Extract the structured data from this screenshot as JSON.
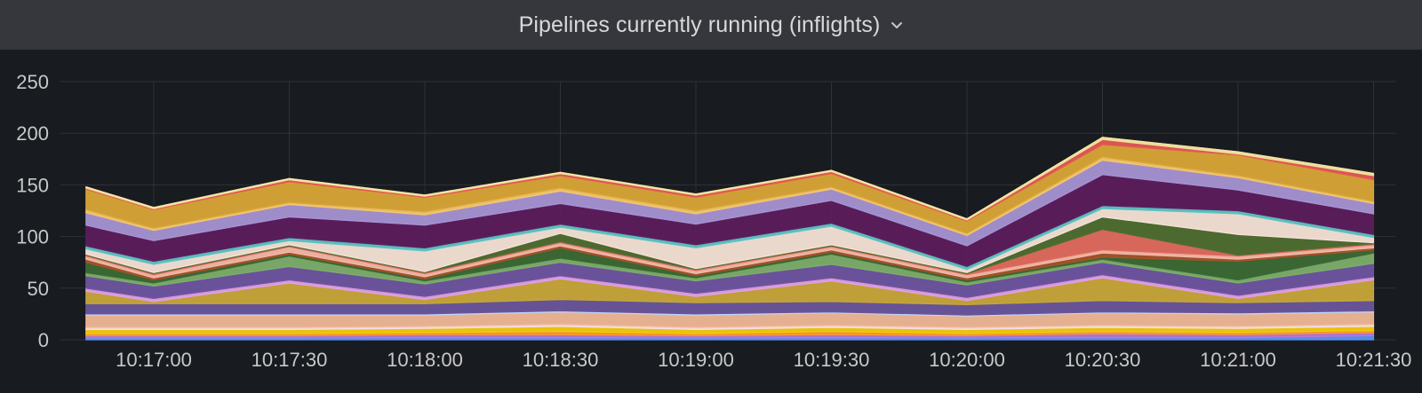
{
  "panel": {
    "title": "Pipelines currently running (inflights)",
    "menu_icon": "chevron-down-icon"
  },
  "chart_data": {
    "type": "area",
    "stacked": true,
    "title": "Pipelines currently running (inflights)",
    "xlabel": "",
    "ylabel": "",
    "x": [
      "10:16:45",
      "10:17:00",
      "10:17:30",
      "10:18:00",
      "10:18:30",
      "10:19:00",
      "10:19:30",
      "10:20:00",
      "10:20:30",
      "10:21:00",
      "10:21:30"
    ],
    "xticks": [
      "10:17:00",
      "10:17:30",
      "10:18:00",
      "10:18:30",
      "10:19:00",
      "10:19:30",
      "10:20:00",
      "10:20:30",
      "10:21:00",
      "10:21:30"
    ],
    "ylim": [
      0,
      250
    ],
    "yticks": [
      0,
      50,
      100,
      150,
      200,
      250
    ],
    "grid": true,
    "legend": "none",
    "series": [
      {
        "color": "#5794f2",
        "values": [
          2,
          2,
          2,
          2,
          2,
          2,
          2,
          2,
          2,
          2,
          4
        ]
      },
      {
        "color": "#b877d9",
        "values": [
          2,
          2,
          2,
          3,
          3,
          2,
          3,
          2,
          4,
          3,
          3
        ]
      },
      {
        "color": "#ff9830",
        "values": [
          2,
          2,
          2,
          2,
          3,
          2,
          3,
          2,
          2,
          2,
          2
        ]
      },
      {
        "color": "#f2cc0c",
        "values": [
          4,
          4,
          4,
          4,
          5,
          4,
          4,
          4,
          4,
          4,
          4
        ]
      },
      {
        "color": "#fadde0",
        "values": [
          2,
          2,
          2,
          2,
          2,
          2,
          2,
          2,
          2,
          2,
          2
        ]
      },
      {
        "color": "#f0b897",
        "values": [
          12,
          12,
          12,
          11,
          12,
          12,
          12,
          11,
          12,
          12,
          12
        ]
      },
      {
        "color": "#c0d8ff",
        "values": [
          1,
          1,
          1,
          1,
          1,
          1,
          1,
          1,
          1,
          1,
          1
        ]
      },
      {
        "color": "#6a569c",
        "values": [
          10,
          10,
          10,
          10,
          11,
          11,
          10,
          10,
          11,
          10,
          10
        ]
      },
      {
        "color": "#c8a63a",
        "values": [
          12,
          2,
          20,
          4,
          20,
          6,
          20,
          4,
          22,
          4,
          20
        ]
      },
      {
        "color": "#e2a0e6",
        "values": [
          3,
          3,
          3,
          3,
          3,
          3,
          3,
          3,
          3,
          3,
          3
        ]
      },
      {
        "color": "#6e55a0",
        "values": [
          12,
          12,
          13,
          12,
          13,
          12,
          13,
          12,
          12,
          12,
          13
        ]
      },
      {
        "color": "#7dae6b",
        "values": [
          3,
          3,
          10,
          3,
          4,
          3,
          10,
          3,
          3,
          3,
          10
        ]
      },
      {
        "color": "#3b6a34",
        "values": [
          10,
          3,
          2,
          2,
          10,
          2,
          2,
          2,
          2,
          18,
          3
        ]
      },
      {
        "color": "#a5532a",
        "values": [
          3,
          2,
          2,
          2,
          2,
          2,
          2,
          2,
          4,
          2,
          2
        ]
      },
      {
        "color": "#f4b8a8",
        "values": [
          3,
          3,
          5,
          3,
          3,
          3,
          3,
          3,
          3,
          3,
          3
        ]
      },
      {
        "color": "#e06b5e",
        "values": [
          1,
          1,
          1,
          1,
          1,
          1,
          1,
          1,
          20,
          1,
          1
        ]
      },
      {
        "color": "#4f6e32",
        "values": [
          1,
          1,
          1,
          1,
          8,
          1,
          1,
          1,
          12,
          20,
          1
        ]
      },
      {
        "color": "#f7e3d6",
        "values": [
          5,
          8,
          4,
          20,
          6,
          20,
          18,
          3,
          8,
          20,
          5
        ]
      },
      {
        "color": "#5ec4c4",
        "values": [
          3,
          3,
          3,
          3,
          3,
          3,
          3,
          3,
          3,
          3,
          3
        ]
      },
      {
        "color": "#5c1e5d",
        "values": [
          20,
          20,
          20,
          22,
          20,
          20,
          22,
          20,
          30,
          20,
          20
        ]
      },
      {
        "color": "#a794d4",
        "values": [
          12,
          10,
          12,
          10,
          12,
          10,
          11,
          10,
          14,
          12,
          10
        ]
      },
      {
        "color": "#f6c76b",
        "values": [
          3,
          2,
          2,
          3,
          3,
          3,
          2,
          2,
          3,
          2,
          2
        ]
      },
      {
        "color": "#d9a637",
        "values": [
          20,
          18,
          20,
          14,
          12,
          13,
          13,
          12,
          12,
          20,
          21
        ]
      },
      {
        "color": "#e55a56",
        "values": [
          1,
          1,
          2,
          1,
          2,
          2,
          2,
          1,
          5,
          1,
          4
        ]
      },
      {
        "color": "#f2e39a",
        "values": [
          1,
          1,
          1,
          1,
          1,
          1,
          1,
          1,
          2,
          2,
          2
        ]
      }
    ]
  }
}
